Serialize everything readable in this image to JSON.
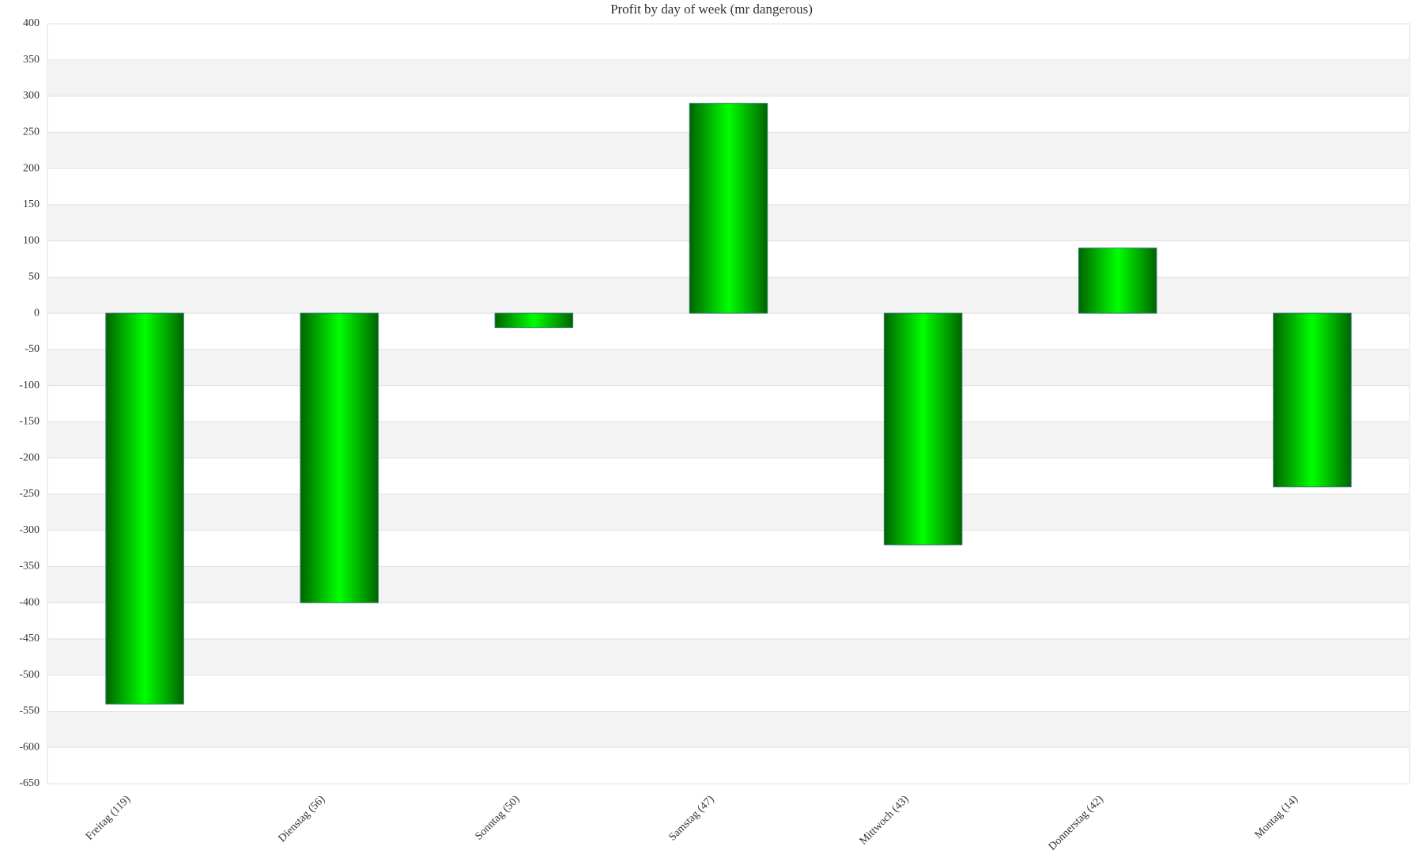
{
  "chart_data": {
    "type": "bar",
    "title": "Profit by day of week  (mr dangerous)",
    "categories": [
      "Freitag (119)",
      "Dienstag (56)",
      "Sonntag (50)",
      "Samstag (47)",
      "Mittwoch (43)",
      "Donnerstag (42)",
      "Montag (14)"
    ],
    "values": [
      -540,
      -400,
      -20,
      290,
      -320,
      90,
      -240
    ],
    "color": "#00ff00",
    "ylim": [
      -650,
      400
    ],
    "yticks": [
      -650,
      -600,
      -550,
      -500,
      -450,
      -400,
      -350,
      -300,
      -250,
      -200,
      -150,
      -100,
      -50,
      0,
      50,
      100,
      150,
      200,
      250,
      300,
      350,
      400
    ],
    "grid": true
  }
}
